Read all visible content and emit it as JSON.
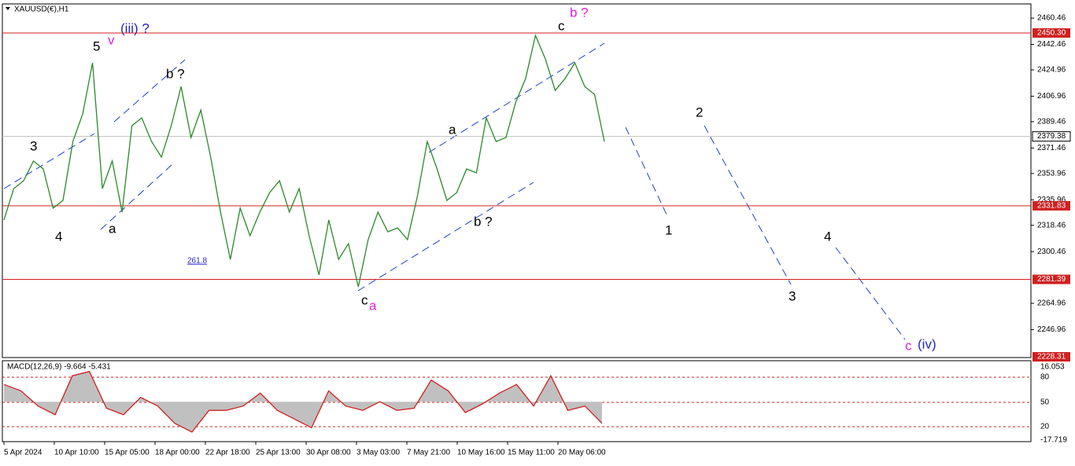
{
  "header": {
    "title": "XAUUSD(€),H1"
  },
  "chart_data": {
    "type": "line",
    "color": "#2a8a2a",
    "ylim": [
      2227.8,
      2470.2
    ],
    "yticks": [
      2460.46,
      2442.46,
      2424.96,
      2406.96,
      2389.46,
      2371.46,
      2353.96,
      2335.96,
      2318.46,
      2300.46,
      2264.96,
      2246.96
    ],
    "levels": [
      {
        "value": 2450.3,
        "label": "2450.30"
      },
      {
        "value": 2331.83,
        "label": "2331.83"
      },
      {
        "value": 2281.39,
        "label": "2281.39"
      },
      {
        "value": 2228.31,
        "label": "2228.31"
      }
    ],
    "current": 2379.38,
    "x_labels": [
      "5 Apr 2024",
      "10 Apr 10:00",
      "15 Apr 05:00",
      "18 Apr 00:00",
      "22 Apr 18:00",
      "25 Apr 13:00",
      "30 Apr 08:00",
      "3 May 03:00",
      "7 May 21:00",
      "10 May 16:00",
      "15 May 11:00",
      "20 May 06:00"
    ],
    "values": [
      2322.1,
      2343.6,
      2349.0,
      2362.5,
      2357.1,
      2330.2,
      2335.5,
      2375.9,
      2394.8,
      2429.8,
      2343.6,
      2362.5,
      2327.5,
      2386.7,
      2392.1,
      2375.9,
      2365.2,
      2386.7,
      2413.6,
      2378.6,
      2397.5,
      2365.2,
      2327.5,
      2295.1,
      2330.2,
      2311.3,
      2327.5,
      2340.9,
      2349.0,
      2327.5,
      2343.6,
      2311.3,
      2284.4,
      2322.1,
      2295.1,
      2305.9,
      2276.3,
      2308.6,
      2327.5,
      2314.0,
      2316.7,
      2308.6,
      2338.2,
      2375.9,
      2357.1,
      2335.5,
      2340.9,
      2357.1,
      2354.4,
      2392.1,
      2375.9,
      2378.6,
      2402.9,
      2419.0,
      2448.6,
      2432.5,
      2410.9,
      2419.0,
      2429.8,
      2413.6,
      2408.2,
      2375.9
    ],
    "annotations": [
      "5",
      "v",
      "(iii) ?",
      "3",
      "4",
      "a",
      "b ?",
      "261.8",
      "c",
      "a",
      "a",
      "b ?",
      "c",
      "b ?",
      "1",
      "2",
      "3",
      "4",
      "c",
      "(iv)"
    ]
  },
  "macd": {
    "label": "MACD(12,26,9) -9.664 -5.431",
    "ylim": [
      -17.719,
      16.053
    ],
    "yticks": [
      16.053,
      -17.719
    ],
    "levels": [
      "80",
      "50",
      "20"
    ],
    "values": [
      8,
      5,
      -2,
      -6,
      12,
      14,
      -3,
      -6,
      2,
      -2,
      -10,
      -14,
      -4,
      -4,
      -2,
      4,
      -4,
      -8,
      -12,
      5,
      -2,
      -4,
      0,
      -4,
      -3,
      10,
      5,
      -5,
      -1,
      4,
      8,
      -2,
      12,
      -4,
      -2,
      -10
    ]
  }
}
